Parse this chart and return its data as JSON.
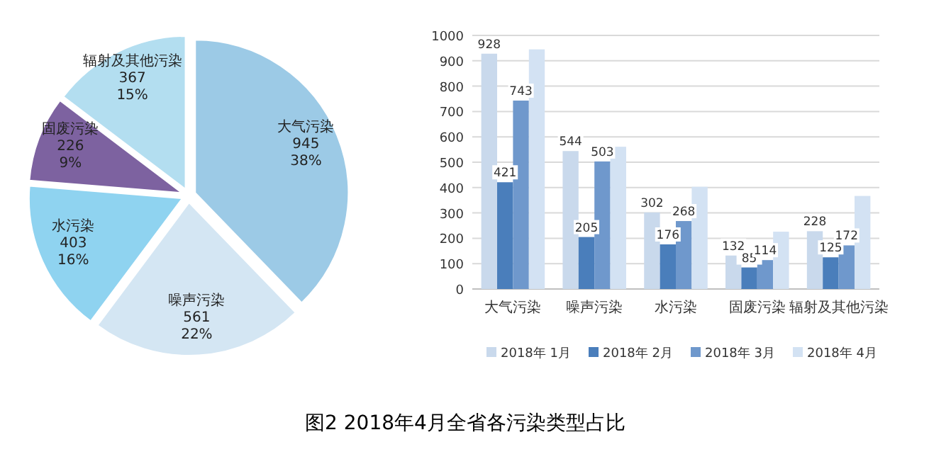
{
  "chart_data": [
    {
      "type": "pie",
      "categories": [
        "大气污染",
        "噪声污染",
        "水污染",
        "固废污染",
        "辐射及其他污染"
      ],
      "values": [
        945,
        561,
        403,
        226,
        367
      ],
      "value_labels": [
        "945\n38%",
        "561\n22%",
        "403\n16%",
        "226\n9%",
        "367\n15%"
      ],
      "colors": [
        "#9ccae6",
        "#d4e6f3",
        "#8fd3f0",
        "#7d62a0",
        "#b3def0"
      ],
      "annotations": [
        "图2  2018年4月全省各污染类型占比"
      ]
    },
    {
      "type": "bar",
      "categories": [
        "大气污染",
        "噪声污染",
        "水污染",
        "固废污染",
        "辐射及其他污染"
      ],
      "ylim": [
        0,
        1000
      ],
      "yticks": [
        0,
        100,
        200,
        300,
        400,
        500,
        600,
        700,
        800,
        900,
        1000
      ],
      "grid": "y",
      "legend": "bottom",
      "series": [
        {
          "name": "2018年 1月",
          "color": "#c9d9ec",
          "values": [
            928,
            544,
            302,
            132,
            228
          ],
          "value_labels": [
            "928",
            "544",
            "302",
            "132",
            "228"
          ]
        },
        {
          "name": "2018年 2月",
          "color": "#4a7ebb",
          "values": [
            421,
            205,
            176,
            85,
            125
          ],
          "value_labels": [
            "421",
            "205",
            "176",
            "85",
            "125"
          ]
        },
        {
          "name": "2018年 3月",
          "color": "#6f98cc",
          "values": [
            743,
            503,
            268,
            114,
            172
          ],
          "value_labels": [
            "743",
            "503",
            "268",
            "114",
            "172"
          ]
        },
        {
          "name": "2018年 4月",
          "color": "#d3e2f3",
          "values": [
            945,
            561,
            403,
            226,
            367
          ]
        }
      ]
    }
  ]
}
